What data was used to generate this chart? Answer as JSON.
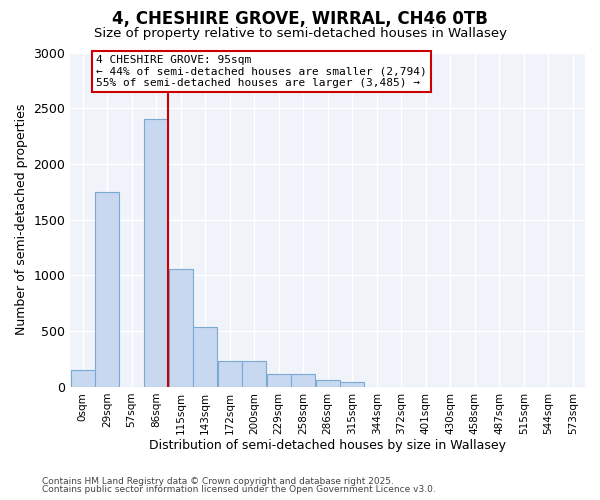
{
  "title": "4, CHESHIRE GROVE, WIRRAL, CH46 0TB",
  "subtitle": "Size of property relative to semi-detached houses in Wallasey",
  "xlabel": "Distribution of semi-detached houses by size in Wallasey",
  "ylabel": "Number of semi-detached properties",
  "bar_color": "#c8d8f0",
  "bar_edge_color": "#7aaad0",
  "vline_color": "#cc0000",
  "vline_x_index": 3,
  "annotation_line1": "4 CHESHIRE GROVE: 95sqm",
  "annotation_line2": "← 44% of semi-detached houses are smaller (2,794)",
  "annotation_line3": "55% of semi-detached houses are larger (3,485) →",
  "categories": [
    "0sqm",
    "29sqm",
    "57sqm",
    "86sqm",
    "115sqm",
    "143sqm",
    "172sqm",
    "200sqm",
    "229sqm",
    "258sqm",
    "286sqm",
    "315sqm",
    "344sqm",
    "372sqm",
    "401sqm",
    "430sqm",
    "458sqm",
    "487sqm",
    "515sqm",
    "544sqm",
    "573sqm"
  ],
  "values": [
    155,
    1750,
    0,
    2400,
    1060,
    540,
    235,
    235,
    115,
    115,
    65,
    40,
    0,
    0,
    0,
    0,
    0,
    0,
    0,
    0,
    0
  ],
  "ylim": [
    0,
    3000
  ],
  "yticks": [
    0,
    500,
    1000,
    1500,
    2000,
    2500,
    3000
  ],
  "figsize": [
    6.0,
    5.0
  ],
  "dpi": 100,
  "footer1": "Contains HM Land Registry data © Crown copyright and database right 2025.",
  "footer2": "Contains public sector information licensed under the Open Government Licence v3.0.",
  "plot_bg": "#f0f4fa",
  "grid_color": "#ffffff",
  "ann_box_color": "#cc0000"
}
